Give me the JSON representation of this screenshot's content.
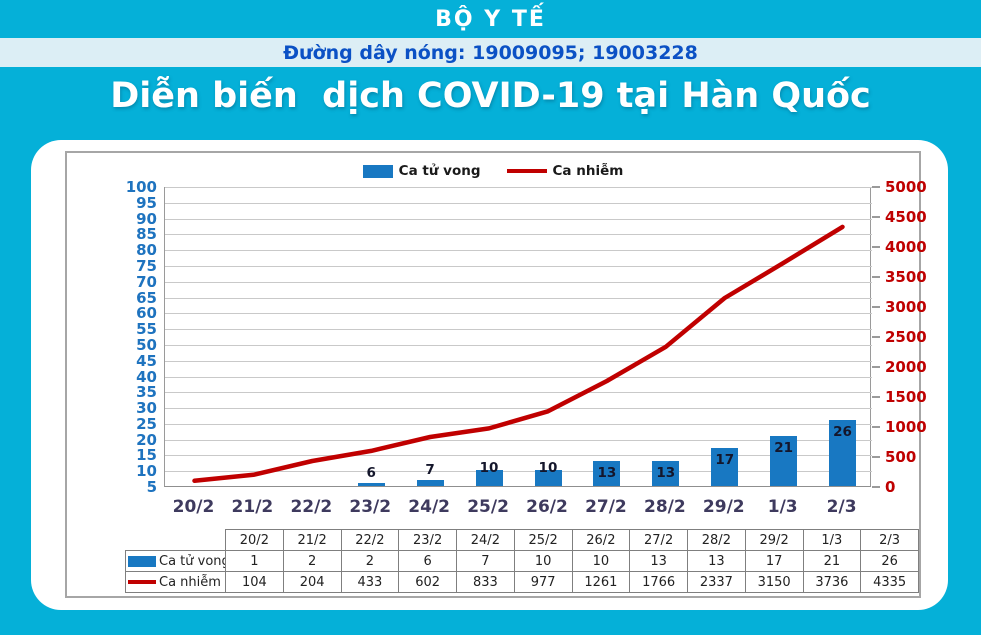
{
  "header": {
    "ministry": "BỘ Y TẾ",
    "hotline": "Đường dây nóng: 19009095; 19003228"
  },
  "title": "Diễn biến  dịch COVID-19 tại Hàn Quốc",
  "colors": {
    "page_background": "#05b0d8",
    "hotline_band": "#dceef5",
    "hotline_text": "#0b51c5",
    "bar": "#1878c2",
    "line": "#c00000",
    "left_axis_text": "#1e73bf",
    "right_axis_text": "#bf0000",
    "x_label_text": "#3e3a5e"
  },
  "chart_data": {
    "type": "bar",
    "subtype": "combo bar + line, dual y-axes, with data table",
    "title": "Diễn biến dịch COVID-19 tại Hàn Quốc",
    "categories": [
      "20/2",
      "21/2",
      "22/2",
      "23/2",
      "24/2",
      "25/2",
      "26/2",
      "27/2",
      "28/2",
      "29/2",
      "1/3",
      "2/3"
    ],
    "series": [
      {
        "name": "Ca tử vong",
        "chart_type": "bar",
        "y_axis": "left",
        "color": "#1878c2",
        "values": [
          1,
          2,
          2,
          6,
          7,
          10,
          10,
          13,
          13,
          17,
          21,
          26
        ]
      },
      {
        "name": "Ca nhiễm",
        "chart_type": "line",
        "y_axis": "right",
        "color": "#c00000",
        "values": [
          104,
          204,
          433,
          602,
          833,
          977,
          1261,
          1766,
          2337,
          3150,
          3736,
          4335
        ]
      }
    ],
    "left_axis": {
      "min": 5,
      "max": 100,
      "step": 5,
      "ticks": [
        5,
        10,
        15,
        20,
        25,
        30,
        35,
        40,
        45,
        50,
        55,
        60,
        65,
        70,
        75,
        80,
        85,
        90,
        95,
        100
      ]
    },
    "right_axis": {
      "min": 0,
      "max": 5000,
      "step": 500,
      "ticks": [
        0,
        500,
        1000,
        1500,
        2000,
        2500,
        3000,
        3500,
        4000,
        4500,
        5000
      ]
    },
    "legend": [
      "Ca tử vong",
      "Ca nhiễm"
    ],
    "legend_position": "top",
    "grid": true,
    "data_table": true
  }
}
